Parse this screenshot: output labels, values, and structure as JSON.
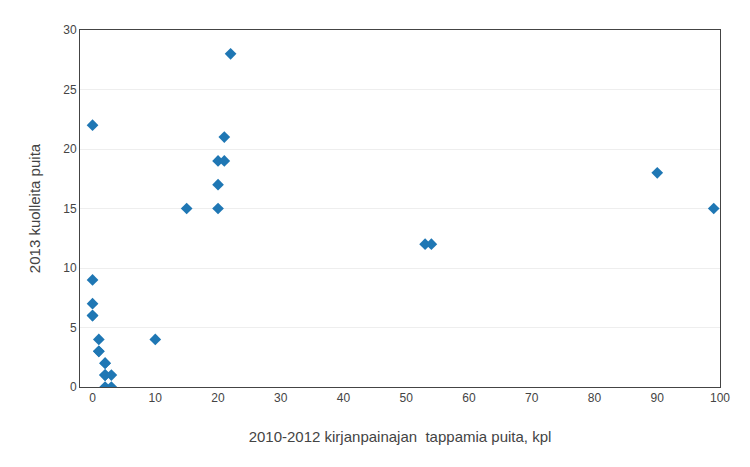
{
  "chart_data": {
    "type": "scatter",
    "x": [
      0,
      0,
      0,
      0,
      0,
      1,
      1,
      1,
      2,
      2,
      2,
      2,
      2,
      2,
      3,
      3,
      10,
      15,
      20,
      20,
      20,
      21,
      21,
      22,
      53,
      54,
      90,
      99
    ],
    "y": [
      22,
      9,
      6,
      6,
      7,
      4,
      3,
      3,
      1,
      1,
      2,
      2,
      1,
      0,
      1,
      0,
      4,
      15,
      15,
      19,
      17,
      19,
      21,
      28,
      12,
      12,
      18,
      15
    ],
    "xlabel": "2010-2012 kirjanpainajan  tappamia puita, kpl",
    "ylabel": "2013 kuolleita puita",
    "xlim": [
      -2,
      100
    ],
    "ylim": [
      0,
      30
    ],
    "xticks": [
      0,
      10,
      20,
      30,
      40,
      50,
      60,
      70,
      80,
      90,
      100
    ],
    "yticks": [
      0,
      5,
      10,
      15,
      20,
      25,
      30
    ],
    "grid": "y",
    "marker": "diamond"
  }
}
